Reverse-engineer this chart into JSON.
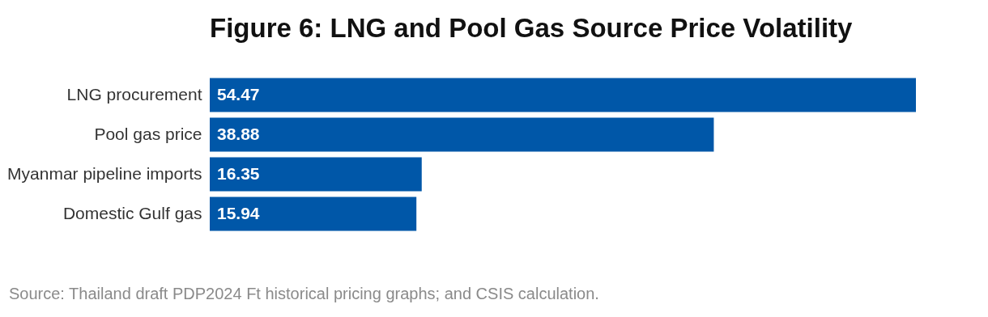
{
  "chart_data": {
    "type": "bar",
    "orientation": "horizontal",
    "title": "Figure 6: LNG and Pool Gas Source Price Volatility",
    "categories": [
      "LNG procurement",
      "Pool gas price",
      "Myanmar pipeline imports",
      "Domestic Gulf gas"
    ],
    "values": [
      54.47,
      38.88,
      16.35,
      15.94
    ],
    "color": "#0057a8",
    "data_labels": true,
    "annotations": [
      "Source: Thailand draft PDP2024 Ft historical pricing graphs; and CSIS calculation."
    ]
  }
}
